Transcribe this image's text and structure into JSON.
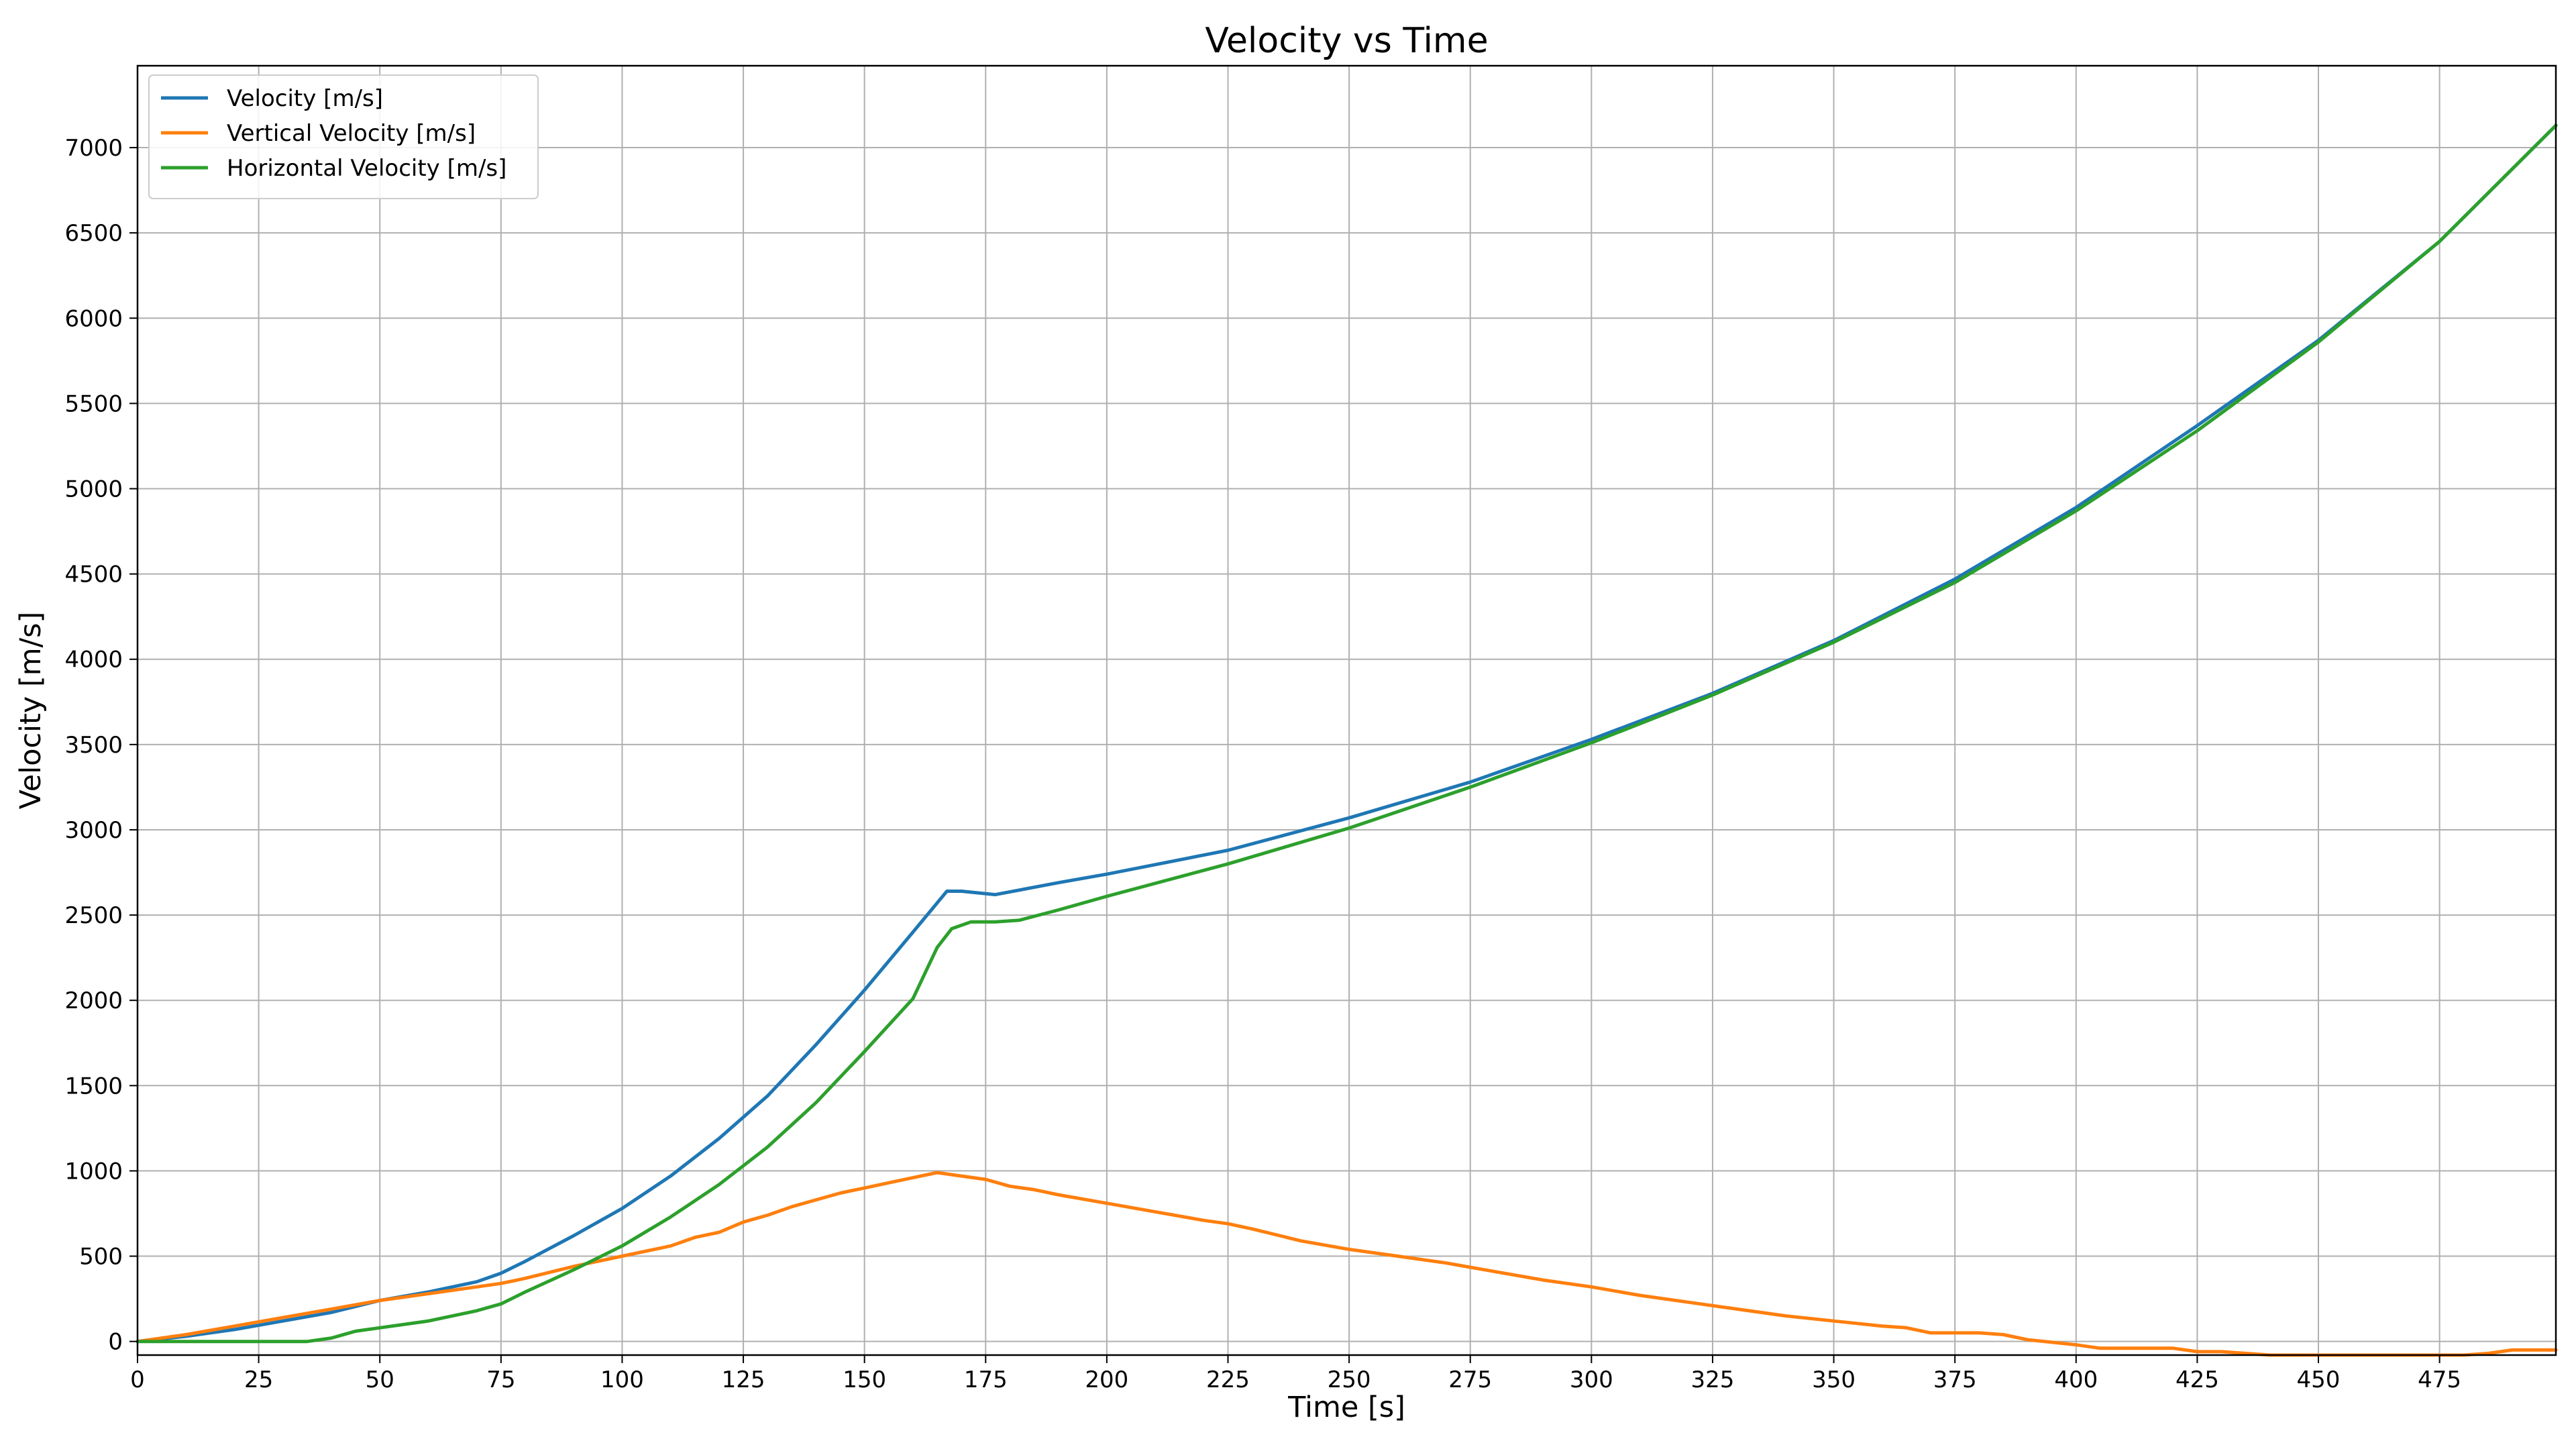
{
  "chart_data": {
    "type": "line",
    "title": "Velocity vs Time",
    "xlabel": "Time [s]",
    "ylabel": "Velocity [m/s]",
    "xlim": [
      0,
      499
    ],
    "ylim": [
      -80,
      7480
    ],
    "xticks": [
      0,
      25,
      50,
      75,
      100,
      125,
      150,
      175,
      200,
      225,
      250,
      275,
      300,
      325,
      350,
      375,
      400,
      425,
      450,
      475
    ],
    "yticks": [
      0,
      500,
      1000,
      1500,
      2000,
      2500,
      3000,
      3500,
      4000,
      4500,
      5000,
      5500,
      6000,
      6500,
      7000
    ],
    "grid": true,
    "legend_position": "top-left",
    "series": [
      {
        "name": "Velocity [m/s]",
        "color": "#1f77b4",
        "x": [
          0,
          10,
          20,
          30,
          40,
          50,
          60,
          70,
          75,
          80,
          90,
          100,
          110,
          120,
          130,
          140,
          150,
          160,
          167,
          170,
          177,
          190,
          200,
          225,
          250,
          275,
          300,
          325,
          350,
          375,
          400,
          425,
          450,
          475,
          499
        ],
        "y": [
          0,
          30,
          70,
          120,
          170,
          240,
          290,
          350,
          400,
          470,
          620,
          780,
          970,
          1190,
          1440,
          1740,
          2060,
          2400,
          2640,
          2640,
          2620,
          2690,
          2740,
          2880,
          3070,
          3280,
          3530,
          3800,
          4110,
          4470,
          4890,
          5370,
          5870,
          6450,
          7130
        ]
      },
      {
        "name": "Vertical Velocity [m/s]",
        "color": "#ff7f0e",
        "x": [
          0,
          10,
          20,
          30,
          40,
          50,
          60,
          70,
          75,
          80,
          90,
          100,
          110,
          115,
          120,
          125,
          130,
          135,
          140,
          145,
          150,
          155,
          160,
          165,
          170,
          175,
          180,
          185,
          190,
          200,
          210,
          220,
          225,
          230,
          240,
          250,
          260,
          270,
          280,
          290,
          300,
          310,
          320,
          330,
          340,
          350,
          360,
          365,
          370,
          380,
          385,
          390,
          400,
          405,
          420,
          425,
          430,
          440,
          450,
          460,
          470,
          480,
          485,
          490,
          499
        ],
        "y": [
          0,
          40,
          90,
          140,
          190,
          240,
          280,
          320,
          340,
          370,
          440,
          500,
          560,
          610,
          640,
          700,
          740,
          790,
          830,
          870,
          900,
          930,
          960,
          990,
          970,
          950,
          910,
          890,
          860,
          810,
          760,
          710,
          690,
          660,
          590,
          540,
          500,
          460,
          410,
          360,
          320,
          270,
          230,
          190,
          150,
          120,
          90,
          80,
          50,
          50,
          40,
          10,
          -20,
          -40,
          -40,
          -60,
          -60,
          -80,
          -80,
          -80,
          -80,
          -80,
          -70,
          -50,
          -50
        ]
      },
      {
        "name": "Horizontal Velocity [m/s]",
        "color": "#2ca02c",
        "x": [
          0,
          10,
          20,
          30,
          35,
          40,
          45,
          50,
          60,
          70,
          75,
          80,
          90,
          100,
          110,
          120,
          130,
          140,
          150,
          160,
          165,
          168,
          172,
          177,
          182,
          190,
          200,
          225,
          250,
          275,
          300,
          325,
          350,
          375,
          400,
          425,
          450,
          475,
          499
        ],
        "y": [
          0,
          0,
          0,
          0,
          0,
          20,
          60,
          80,
          120,
          180,
          220,
          290,
          420,
          560,
          730,
          920,
          1140,
          1400,
          1700,
          2010,
          2310,
          2420,
          2460,
          2460,
          2470,
          2530,
          2610,
          2800,
          3010,
          3250,
          3510,
          3790,
          4100,
          4450,
          4870,
          5340,
          5860,
          6450,
          7130
        ]
      }
    ]
  }
}
